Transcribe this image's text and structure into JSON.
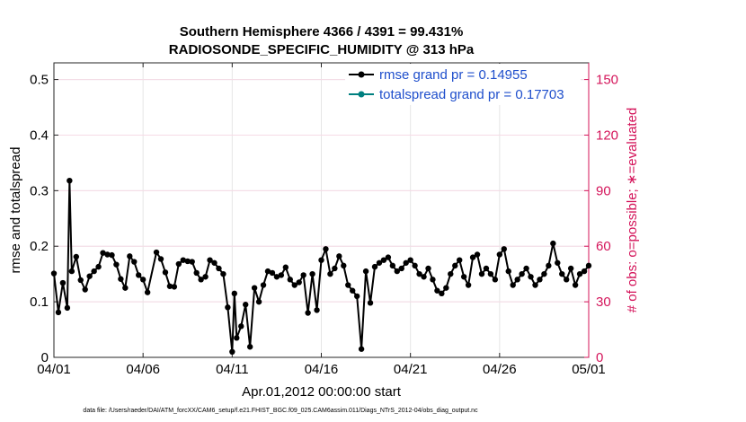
{
  "chart_data": {
    "type": "line",
    "title": "Southern Hemisphere 4366 / 4391 = 99.431%",
    "subtitle": "RADIOSONDE_SPECIFIC_HUMIDITY @ 313 hPa",
    "xlabel": "Apr.01,2012 00:00:00 start",
    "ylabel": "rmse and totalspread",
    "y2label": "# of obs: o=possible; ∗=evaluated",
    "xlim": [
      0,
      30
    ],
    "ylim": [
      0,
      0.53
    ],
    "y2lim": [
      0,
      159
    ],
    "x_ticks": [
      0,
      5,
      10,
      15,
      20,
      25,
      30
    ],
    "x_tick_labels": [
      "04/01",
      "04/06",
      "04/11",
      "04/16",
      "04/21",
      "04/26",
      "05/01"
    ],
    "y_ticks": [
      0,
      0.1,
      0.2,
      0.3,
      0.4,
      0.5
    ],
    "y_tick_labels": [
      "0",
      "0.1",
      "0.2",
      "0.3",
      "0.4",
      "0.5"
    ],
    "y2_ticks": [
      0,
      30,
      60,
      90,
      120,
      150
    ],
    "y2_tick_labels": [
      "0",
      "30",
      "60",
      "90",
      "120",
      "150"
    ],
    "grid": true,
    "legend_position": "top-right",
    "footnote": "data file: /Users/raeder/DAI/ATM_forcXX/CAM6_setup/f.e21.FHIST_BGC.f09_025.CAM6assim.011/Diags_NTrS_2012-04/obs_diag_output.nc",
    "colors": {
      "rmse": "#000000",
      "spread": "#008080",
      "counts": "#d4145a",
      "legend_text": "#1f4fcc"
    },
    "series": [
      {
        "name": "rmse grand pr = 0.14955",
        "axis": "left",
        "values": [
          [
            0.0,
            0.151
          ],
          [
            0.25,
            0.081
          ],
          [
            0.5,
            0.134
          ],
          [
            0.75,
            0.089
          ],
          [
            0.875,
            0.318
          ],
          [
            1.0,
            0.155
          ],
          [
            1.25,
            0.181
          ],
          [
            1.5,
            0.139
          ],
          [
            1.75,
            0.122
          ],
          [
            2.0,
            0.146
          ],
          [
            2.25,
            0.155
          ],
          [
            2.5,
            0.163
          ],
          [
            2.75,
            0.188
          ],
          [
            3.0,
            0.185
          ],
          [
            3.25,
            0.184
          ],
          [
            3.5,
            0.167
          ],
          [
            3.75,
            0.141
          ],
          [
            4.0,
            0.125
          ],
          [
            4.25,
            0.182
          ],
          [
            4.5,
            0.172
          ],
          [
            4.75,
            0.148
          ],
          [
            5.0,
            0.14
          ],
          [
            5.25,
            0.117
          ],
          [
            5.75,
            0.189
          ],
          [
            6.0,
            0.177
          ],
          [
            6.25,
            0.153
          ],
          [
            6.5,
            0.128
          ],
          [
            6.75,
            0.127
          ],
          [
            7.0,
            0.168
          ],
          [
            7.25,
            0.175
          ],
          [
            7.5,
            0.173
          ],
          [
            7.75,
            0.172
          ],
          [
            8.0,
            0.152
          ],
          [
            8.25,
            0.14
          ],
          [
            8.5,
            0.145
          ],
          [
            9.75,
            0.09
          ],
          [
            10.0,
            0.01
          ],
          [
            10.125,
            0.115
          ],
          [
            10.25,
            0.035
          ],
          [
            10.5,
            0.056
          ],
          [
            10.75,
            0.095
          ],
          [
            11.0,
            0.019
          ],
          [
            11.25,
            0.125
          ],
          [
            11.5,
            0.1
          ],
          [
            11.75,
            0.13
          ],
          [
            12.0,
            0.155
          ],
          [
            12.25,
            0.152
          ],
          [
            12.5,
            0.145
          ],
          [
            12.75,
            0.148
          ],
          [
            13.0,
            0.162
          ],
          [
            13.25,
            0.14
          ],
          [
            13.5,
            0.13
          ],
          [
            14.0,
            0.148
          ],
          [
            14.25,
            0.08
          ],
          [
            14.5,
            0.15
          ],
          [
            14.75,
            0.085
          ],
          [
            15.0,
            0.175
          ],
          [
            15.25,
            0.195
          ],
          [
            15.5,
            0.15
          ],
          [
            15.75,
            0.16
          ],
          [
            16.0,
            0.182
          ],
          [
            16.25,
            0.165
          ],
          [
            16.5,
            0.13
          ],
          [
            16.75,
            0.12
          ],
          [
            17.0,
            0.11
          ],
          [
            17.25,
            0.015
          ],
          [
            17.5,
            0.155
          ],
          [
            17.75,
            0.098
          ],
          [
            18.0,
            0.163
          ]
        ],
        "x": [
          0,
          0.25,
          0.5,
          0.75,
          0.875,
          1,
          1.25,
          1.5,
          1.75,
          2,
          2.25,
          2.5,
          2.75,
          3,
          3.25,
          3.5,
          3.75,
          4,
          4.25,
          4.5,
          4.75,
          5,
          5.25,
          5.75,
          6,
          6.25,
          6.5,
          6.75,
          7,
          7.25,
          7.5,
          7.75,
          8,
          8.25,
          8.5,
          9.75,
          10,
          10.125,
          10.25,
          10.5,
          10.75,
          11,
          11.25,
          11.5,
          11.75,
          12,
          12.25,
          12.5,
          12.75,
          13,
          13.25,
          13.5,
          14,
          14.25,
          14.5,
          14.75,
          15,
          15.25,
          15.5,
          15.75,
          16,
          16.25,
          16.5,
          16.75,
          17,
          17.25,
          17.5,
          17.75,
          18
        ]
      }
    ]
  }
}
